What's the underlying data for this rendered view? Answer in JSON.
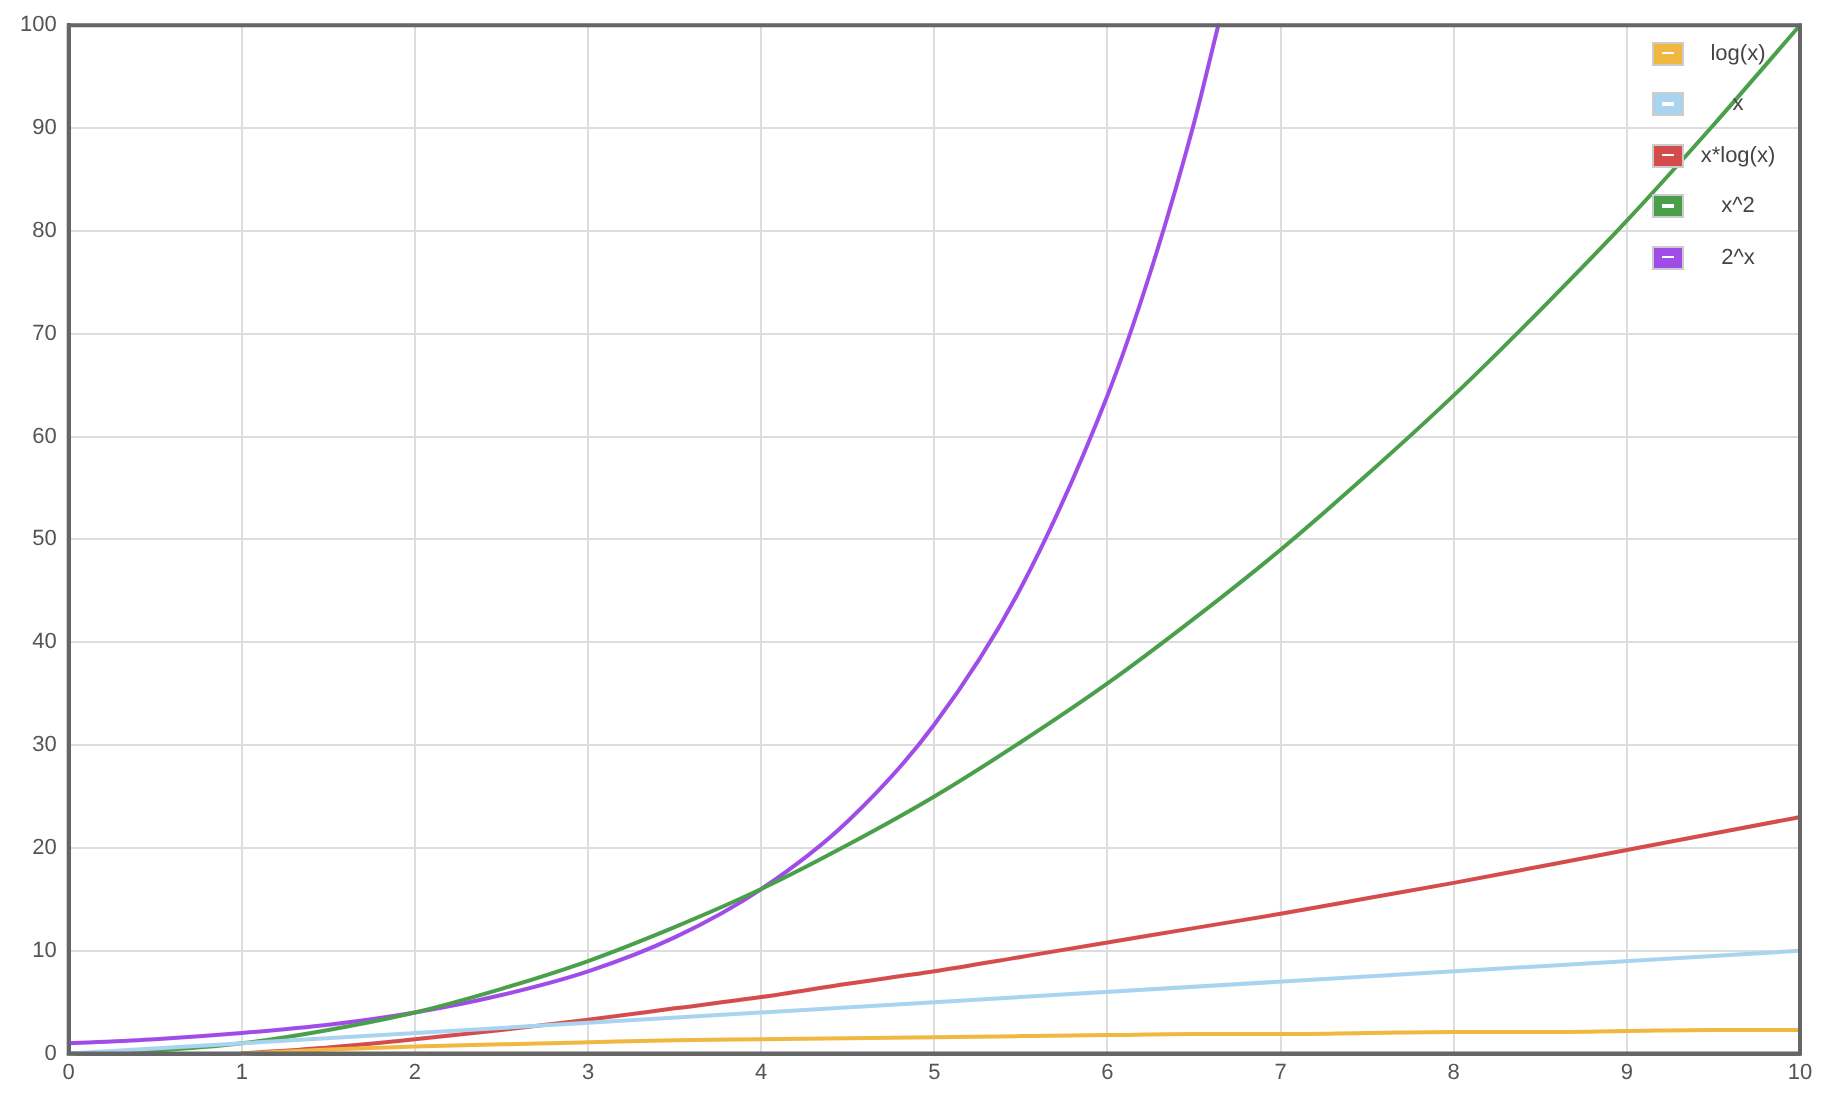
{
  "chart_data": {
    "type": "line",
    "xlim": [
      0,
      10
    ],
    "xticks": [
      0,
      1,
      2,
      3,
      4,
      5,
      6,
      7,
      8,
      9,
      10
    ],
    "ylim": [
      0,
      100
    ],
    "yticks": [
      0,
      10,
      20,
      30,
      40,
      50,
      60,
      70,
      80,
      90,
      100
    ],
    "grid": true,
    "legend": "top right",
    "marker": "none",
    "line_style": "solid",
    "series": [
      {
        "name": "log(x)",
        "color": "#f0b840",
        "x": [
          1,
          1.5,
          2,
          2.5,
          3,
          3.5,
          4,
          4.5,
          5,
          5.5,
          6,
          6.5,
          7,
          7.5,
          8,
          8.5,
          9,
          9.5,
          10
        ],
        "values": [
          0,
          0.4,
          0.7,
          0.9,
          1.1,
          1.3,
          1.4,
          1.5,
          1.6,
          1.7,
          1.8,
          1.9,
          1.9,
          2.0,
          2.1,
          2.1,
          2.2,
          2.3,
          2.3
        ]
      },
      {
        "name": "x",
        "color": "#a8d4f0",
        "x": [
          0,
          10
        ],
        "values": [
          0,
          10
        ]
      },
      {
        "name": "x*log(x)",
        "color": "#d44c4c",
        "x": [
          1,
          1.5,
          2,
          2.5,
          3,
          3.5,
          4,
          4.5,
          5,
          5.5,
          6,
          6.5,
          7,
          7.5,
          8,
          8.5,
          9,
          9.5,
          10
        ],
        "values": [
          0,
          0.6,
          1.4,
          2.3,
          3.3,
          4.4,
          5.5,
          6.8,
          8.0,
          9.4,
          10.8,
          12.2,
          13.6,
          15.1,
          16.6,
          18.2,
          19.8,
          21.4,
          23.0
        ]
      },
      {
        "name": "x^2",
        "color": "#4aa04a",
        "x": [
          0,
          0.5,
          1,
          1.5,
          2,
          2.5,
          3,
          3.5,
          4,
          4.5,
          5,
          5.5,
          6,
          6.5,
          7,
          7.5,
          8,
          8.5,
          9,
          9.5,
          10
        ],
        "values": [
          0,
          0.3,
          1,
          2.3,
          4,
          6.3,
          9,
          12.3,
          16,
          20.3,
          25,
          30.3,
          36,
          42.3,
          49,
          56.3,
          64,
          72.3,
          81,
          90.3,
          100
        ]
      },
      {
        "name": "2^x",
        "color": "#a04ce8",
        "x": [
          0,
          0.5,
          1,
          1.5,
          2,
          2.5,
          3,
          3.5,
          4,
          4.5,
          5,
          5.5,
          6,
          6.25,
          6.5,
          6.64
        ],
        "values": [
          1,
          1.4,
          2,
          2.8,
          4,
          5.7,
          8,
          11.3,
          16,
          22.6,
          32,
          45.3,
          64,
          76.1,
          90.5,
          100
        ]
      }
    ]
  }
}
